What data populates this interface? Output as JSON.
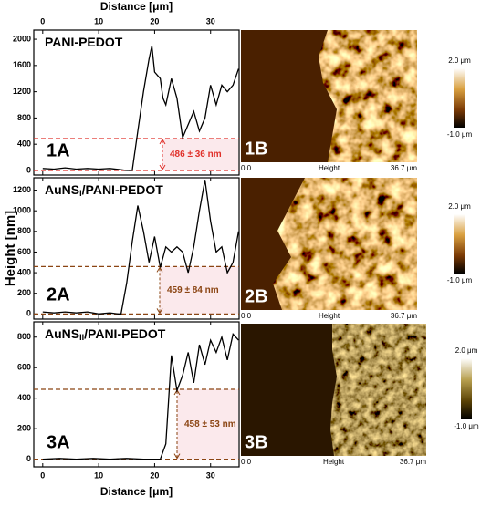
{
  "chart_data": [
    {
      "type": "line",
      "title": "PANI-PEDOT",
      "panel": "1A",
      "xlabel": "Distance [μm]",
      "xaxis_labels": "top",
      "color": "#000000",
      "x": [
        0,
        2,
        4,
        6,
        8,
        10,
        12,
        14,
        15,
        16,
        17,
        18,
        19,
        19.5,
        20,
        21,
        21.5,
        22,
        23,
        24,
        25,
        26,
        27,
        28,
        29,
        30,
        31,
        32,
        33,
        34,
        35
      ],
      "values": [
        30,
        20,
        40,
        20,
        30,
        20,
        30,
        10,
        0,
        0,
        600,
        1200,
        1700,
        1900,
        1500,
        1400,
        1100,
        1000,
        1400,
        1100,
        500,
        700,
        900,
        600,
        800,
        1300,
        1000,
        1300,
        1200,
        1300,
        1550
      ],
      "xlim": [
        -1.6,
        35.1
      ],
      "xticks": [
        0,
        10,
        20,
        30
      ],
      "ylim": [
        -70,
        2140
      ],
      "yticks": [
        0,
        400,
        800,
        1200,
        1600,
        2000
      ],
      "threshold": 486,
      "baseline": 0,
      "threshold_color": "#e0302a",
      "annotation": "486 ± 36 nm"
    },
    {
      "type": "line",
      "title": "AuNS",
      "title_subscript": "I",
      "title_suffix": "/PANI-PEDOT",
      "panel": "2A",
      "ylabel": "Height [nm]",
      "color": "#000000",
      "x": [
        0,
        2,
        4,
        6,
        8,
        10,
        12,
        13.5,
        14,
        15,
        16,
        17,
        18,
        19,
        20,
        21,
        22,
        23,
        24,
        25,
        26,
        27,
        28,
        29,
        30,
        31,
        32,
        33,
        34,
        35
      ],
      "values": [
        20,
        10,
        20,
        10,
        20,
        0,
        10,
        0,
        0,
        300,
        700,
        1050,
        800,
        500,
        750,
        450,
        650,
        600,
        650,
        600,
        400,
        650,
        1000,
        1300,
        900,
        600,
        650,
        400,
        500,
        800
      ],
      "xlim": [
        -1.6,
        35.1
      ],
      "xticks": [
        0,
        10,
        20,
        30
      ],
      "ylim": [
        -50,
        1320
      ],
      "yticks": [
        0,
        200,
        400,
        600,
        800,
        1000,
        1200
      ],
      "threshold": 459,
      "baseline": 0,
      "threshold_color": "#8b4513",
      "annotation": "459 ± 84 nm"
    },
    {
      "type": "line",
      "title": "AuNS",
      "title_subscript": "II",
      "title_suffix": "/PANI-PEDOT",
      "panel": "3A",
      "xlabel": "Distance [μm]",
      "xaxis_labels": "bottom",
      "color": "#000000",
      "x": [
        0,
        3,
        6,
        9,
        12,
        15,
        18,
        21,
        22,
        23,
        24,
        25,
        26,
        27,
        28,
        29,
        30,
        31,
        32,
        33,
        34,
        35
      ],
      "values": [
        0,
        5,
        0,
        5,
        0,
        5,
        0,
        0,
        100,
        680,
        450,
        550,
        700,
        500,
        750,
        620,
        780,
        700,
        800,
        650,
        820,
        780
      ],
      "xlim": [
        -1.6,
        35.1
      ],
      "xticks": [
        0,
        10,
        20,
        30
      ],
      "ylim": [
        -50,
        900
      ],
      "yticks": [
        0,
        200,
        400,
        600,
        800
      ],
      "threshold": 458,
      "baseline": 0,
      "threshold_color": "#8b4513",
      "annotation": "458 ± 53 nm"
    }
  ],
  "images": [
    {
      "label": "1B",
      "scale_start": "0.0",
      "scale_name": "Height",
      "scale_end": "36.7 μm",
      "colorbar_max": "2.0 μm",
      "colorbar_min": "-1.0 μm"
    },
    {
      "label": "2B",
      "scale_start": "0.0",
      "scale_name": "Height",
      "scale_end": "36.7 μm",
      "colorbar_max": "2.0 μm",
      "colorbar_min": "-1.0 μm"
    },
    {
      "label": "3B",
      "scale_start": "0.0",
      "scale_name": "Height",
      "scale_end": "36.7 μm",
      "colorbar_max": "2.0 μm",
      "colorbar_min": "-1.0 μm"
    }
  ]
}
